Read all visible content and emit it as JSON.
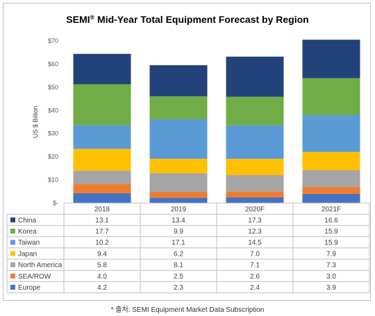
{
  "chart_data": {
    "type": "bar",
    "stacked": true,
    "title": "SEMI",
    "title_superscript": "®",
    "title_rest": " Mid-Year Total Equipment Forecast by Region",
    "ylabel": "US $ Billion",
    "ylim": [
      0,
      70
    ],
    "yticks": [
      "$-",
      "$10",
      "$20",
      "$30",
      "$40",
      "$50",
      "$60",
      "$70"
    ],
    "grid": false,
    "legend": "table-below",
    "categories": [
      "2018",
      "2019",
      "2020F",
      "2021F"
    ],
    "series": [
      {
        "name": "China",
        "color": "#23427a",
        "values": [
          13.1,
          13.4,
          17.3,
          16.6
        ],
        "labels": [
          "13.1",
          "13.4",
          "17.3",
          "16.6"
        ]
      },
      {
        "name": "Korea",
        "color": "#70ad47",
        "values": [
          17.7,
          9.9,
          12.3,
          15.9
        ],
        "labels": [
          "17.7",
          "9.9",
          "12.3",
          "15.9"
        ]
      },
      {
        "name": "Taiwan",
        "color": "#5b9bd5",
        "values": [
          10.2,
          17.1,
          14.5,
          15.9
        ],
        "labels": [
          "10.2",
          "17.1",
          "14.5",
          "15.9"
        ]
      },
      {
        "name": "Japan",
        "color": "#ffc000",
        "values": [
          9.4,
          6.2,
          7.0,
          7.9
        ],
        "labels": [
          "9.4",
          "6.2",
          "7.0",
          "7.9"
        ]
      },
      {
        "name": "North America",
        "color": "#a5a5a5",
        "values": [
          5.8,
          8.1,
          7.1,
          7.3
        ],
        "labels": [
          "5.8",
          "8.1",
          "7.1",
          "7.3"
        ]
      },
      {
        "name": "SEA/ROW",
        "color": "#ed7d31",
        "values": [
          4.0,
          2.5,
          2.6,
          3.0
        ],
        "labels": [
          "4.0",
          "2.5",
          "2.6",
          "3.0"
        ]
      },
      {
        "name": "Europe",
        "color": "#4472c4",
        "values": [
          4.2,
          2.3,
          2.4,
          3.9
        ],
        "labels": [
          "4.2",
          "2.3",
          "2.4",
          "3.9"
        ]
      }
    ]
  },
  "source_note": "* 출처: SEMI Equipment Market Data Subscription"
}
